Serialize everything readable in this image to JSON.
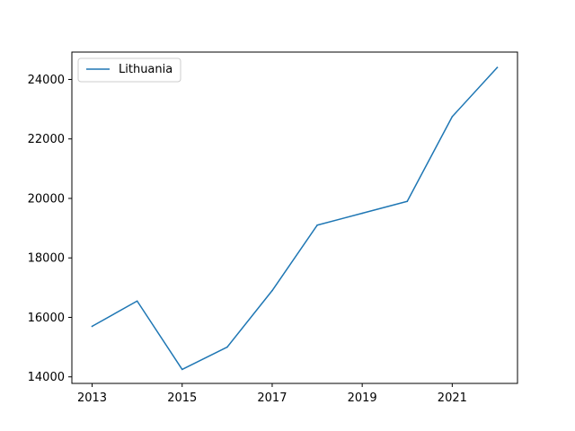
{
  "chart_data": {
    "type": "line",
    "title": "",
    "xlabel": "",
    "ylabel": "",
    "x": [
      2013,
      2014,
      2015,
      2016,
      2017,
      2018,
      2019,
      2020,
      2021,
      2022
    ],
    "series": [
      {
        "name": "Lithuania",
        "color": "#1f77b4",
        "values": [
          15700,
          16550,
          14250,
          15000,
          16900,
          19100,
          19500,
          19900,
          22750,
          24400
        ]
      }
    ],
    "xticks": [
      2013,
      2015,
      2017,
      2019,
      2021
    ],
    "yticks": [
      14000,
      16000,
      18000,
      20000,
      22000,
      24000
    ],
    "xlim": [
      2012.55,
      2022.45
    ],
    "ylim": [
      13780,
      24920
    ],
    "grid": false,
    "legend": {
      "placement": "upper-left"
    }
  }
}
